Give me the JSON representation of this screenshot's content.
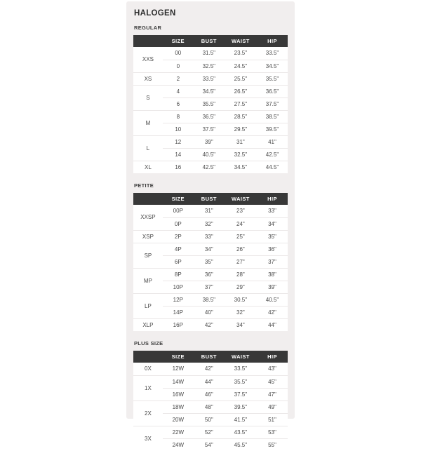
{
  "brand": "HALOGEN",
  "columns": [
    "SIZE",
    "BUST",
    "WAIST",
    "HIP"
  ],
  "colors": {
    "card_bg": "#f1eeee",
    "table_bg": "#ffffff",
    "header_bar": "#383838",
    "header_text": "#ffffff",
    "body_text": "#4a4a4a",
    "divider": "#ebe8e8"
  },
  "sections": [
    {
      "label": "REGULAR",
      "groups": [
        {
          "name": "XXS",
          "rows": [
            [
              "00",
              "31.5\"",
              "23.5\"",
              "33.5\""
            ],
            [
              "0",
              "32.5\"",
              "24.5\"",
              "34.5\""
            ]
          ]
        },
        {
          "name": "XS",
          "rows": [
            [
              "2",
              "33.5\"",
              "25.5\"",
              "35.5\""
            ]
          ]
        },
        {
          "name": "S",
          "rows": [
            [
              "4",
              "34.5\"",
              "26.5\"",
              "36.5\""
            ],
            [
              "6",
              "35.5\"",
              "27.5\"",
              "37.5\""
            ]
          ]
        },
        {
          "name": "M",
          "rows": [
            [
              "8",
              "36.5\"",
              "28.5\"",
              "38.5\""
            ],
            [
              "10",
              "37.5\"",
              "29.5\"",
              "39.5\""
            ]
          ]
        },
        {
          "name": "L",
          "rows": [
            [
              "12",
              "39\"",
              "31\"",
              "41\""
            ],
            [
              "14",
              "40.5\"",
              "32.5\"",
              "42.5\""
            ]
          ]
        },
        {
          "name": "XL",
          "rows": [
            [
              "16",
              "42.5\"",
              "34.5\"",
              "44.5\""
            ]
          ]
        }
      ]
    },
    {
      "label": "PETITE",
      "groups": [
        {
          "name": "XXSP",
          "rows": [
            [
              "00P",
              "31\"",
              "23\"",
              "33\""
            ],
            [
              "0P",
              "32\"",
              "24\"",
              "34\""
            ]
          ]
        },
        {
          "name": "XSP",
          "rows": [
            [
              "2P",
              "33\"",
              "25\"",
              "35\""
            ]
          ]
        },
        {
          "name": "SP",
          "rows": [
            [
              "4P",
              "34\"",
              "26\"",
              "36\""
            ],
            [
              "6P",
              "35\"",
              "27\"",
              "37\""
            ]
          ]
        },
        {
          "name": "MP",
          "rows": [
            [
              "8P",
              "36\"",
              "28\"",
              "38\""
            ],
            [
              "10P",
              "37\"",
              "29\"",
              "39\""
            ]
          ]
        },
        {
          "name": "LP",
          "rows": [
            [
              "12P",
              "38.5\"",
              "30.5\"",
              "40.5\""
            ],
            [
              "14P",
              "40\"",
              "32\"",
              "42\""
            ]
          ]
        },
        {
          "name": "XLP",
          "rows": [
            [
              "16P",
              "42\"",
              "34\"",
              "44\""
            ]
          ]
        }
      ]
    },
    {
      "label": "PLUS SIZE",
      "groups": [
        {
          "name": "0X",
          "rows": [
            [
              "12W",
              "42\"",
              "33.5\"",
              "43\""
            ]
          ]
        },
        {
          "name": "1X",
          "rows": [
            [
              "14W",
              "44\"",
              "35.5\"",
              "45\""
            ],
            [
              "16W",
              "46\"",
              "37.5\"",
              "47\""
            ]
          ]
        },
        {
          "name": "2X",
          "rows": [
            [
              "18W",
              "48\"",
              "39.5\"",
              "49\""
            ],
            [
              "20W",
              "50\"",
              "41.5\"",
              "51\""
            ]
          ]
        },
        {
          "name": "3X",
          "rows": [
            [
              "22W",
              "52\"",
              "43.5\"",
              "53\""
            ],
            [
              "24W",
              "54\"",
              "45.5\"",
              "55\""
            ]
          ]
        }
      ]
    }
  ]
}
